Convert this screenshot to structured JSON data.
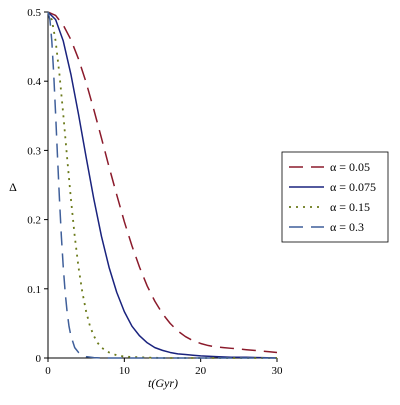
{
  "chart_data": {
    "type": "line",
    "title": "",
    "xlabel": "t(Gyr)",
    "ylabel": "Δ",
    "xlim": [
      0,
      30
    ],
    "ylim": [
      0,
      0.5
    ],
    "xticks": [
      0,
      10,
      20,
      30
    ],
    "yticks": [
      0,
      0.1,
      0.2,
      0.3,
      0.4,
      0.5
    ],
    "xtick_labels": [
      "0",
      "10",
      "20",
      "30"
    ],
    "ytick_labels": [
      "0",
      "0.1",
      "0.2",
      "0.3",
      "0.4",
      "0.5"
    ],
    "grid": false,
    "legend_position": "right",
    "series": [
      {
        "name": "α = 0.05",
        "color": "#8b1a2b",
        "dash": "dash-long",
        "x": [
          0,
          1,
          2,
          3,
          4,
          5,
          6,
          7,
          8,
          9,
          10,
          11,
          12,
          13,
          14,
          15,
          16,
          17,
          18,
          19,
          20,
          21,
          22,
          23,
          24,
          25,
          26,
          27,
          28,
          29,
          30
        ],
        "y": [
          0.5,
          0.495,
          0.481,
          0.46,
          0.432,
          0.398,
          0.359,
          0.318,
          0.276,
          0.236,
          0.197,
          0.162,
          0.131,
          0.104,
          0.082,
          0.064,
          0.05,
          0.039,
          0.031,
          0.025,
          0.021,
          0.018,
          0.016,
          0.015,
          0.014,
          0.013,
          0.012,
          0.011,
          0.01,
          0.009,
          0.008
        ]
      },
      {
        "name": "α = 0.075",
        "color": "#1a237e",
        "dash": "solid",
        "x": [
          0,
          1,
          2,
          3,
          4,
          5,
          6,
          7,
          8,
          9,
          10,
          11,
          12,
          13,
          14,
          15,
          16,
          17,
          18,
          19,
          20,
          22,
          24,
          26,
          28,
          30
        ],
        "y": [
          0.5,
          0.489,
          0.458,
          0.41,
          0.352,
          0.29,
          0.23,
          0.176,
          0.131,
          0.095,
          0.067,
          0.046,
          0.032,
          0.022,
          0.015,
          0.011,
          0.008,
          0.006,
          0.005,
          0.004,
          0.003,
          0.002,
          0.001,
          0.001,
          0.0005,
          0.0
        ]
      },
      {
        "name": "α = 0.15",
        "color": "#6b7a1a",
        "dash": "dot",
        "x": [
          0,
          0.5,
          1,
          1.5,
          2,
          2.5,
          3,
          3.5,
          4,
          4.5,
          5,
          5.5,
          6,
          6.5,
          7,
          8,
          9,
          10,
          12,
          15,
          20,
          25,
          30
        ],
        "y": [
          0.5,
          0.489,
          0.458,
          0.41,
          0.352,
          0.29,
          0.23,
          0.176,
          0.131,
          0.095,
          0.067,
          0.046,
          0.032,
          0.022,
          0.015,
          0.008,
          0.004,
          0.002,
          0.001,
          0.0,
          0.0,
          0.0,
          0.0
        ]
      },
      {
        "name": "α = 0.3",
        "color": "#3f5f9a",
        "dash": "dash-long",
        "x": [
          0,
          0.25,
          0.5,
          0.75,
          1,
          1.25,
          1.5,
          1.75,
          2,
          2.25,
          2.5,
          2.75,
          3,
          3.5,
          4,
          4.5,
          5,
          6,
          7,
          8,
          10,
          15,
          20,
          25,
          30
        ],
        "y": [
          0.5,
          0.489,
          0.458,
          0.41,
          0.352,
          0.29,
          0.23,
          0.176,
          0.131,
          0.095,
          0.067,
          0.046,
          0.032,
          0.015,
          0.008,
          0.004,
          0.002,
          0.0005,
          0.0,
          0.0,
          0.0,
          0.0,
          0.0,
          0.0,
          0.0
        ]
      }
    ]
  }
}
